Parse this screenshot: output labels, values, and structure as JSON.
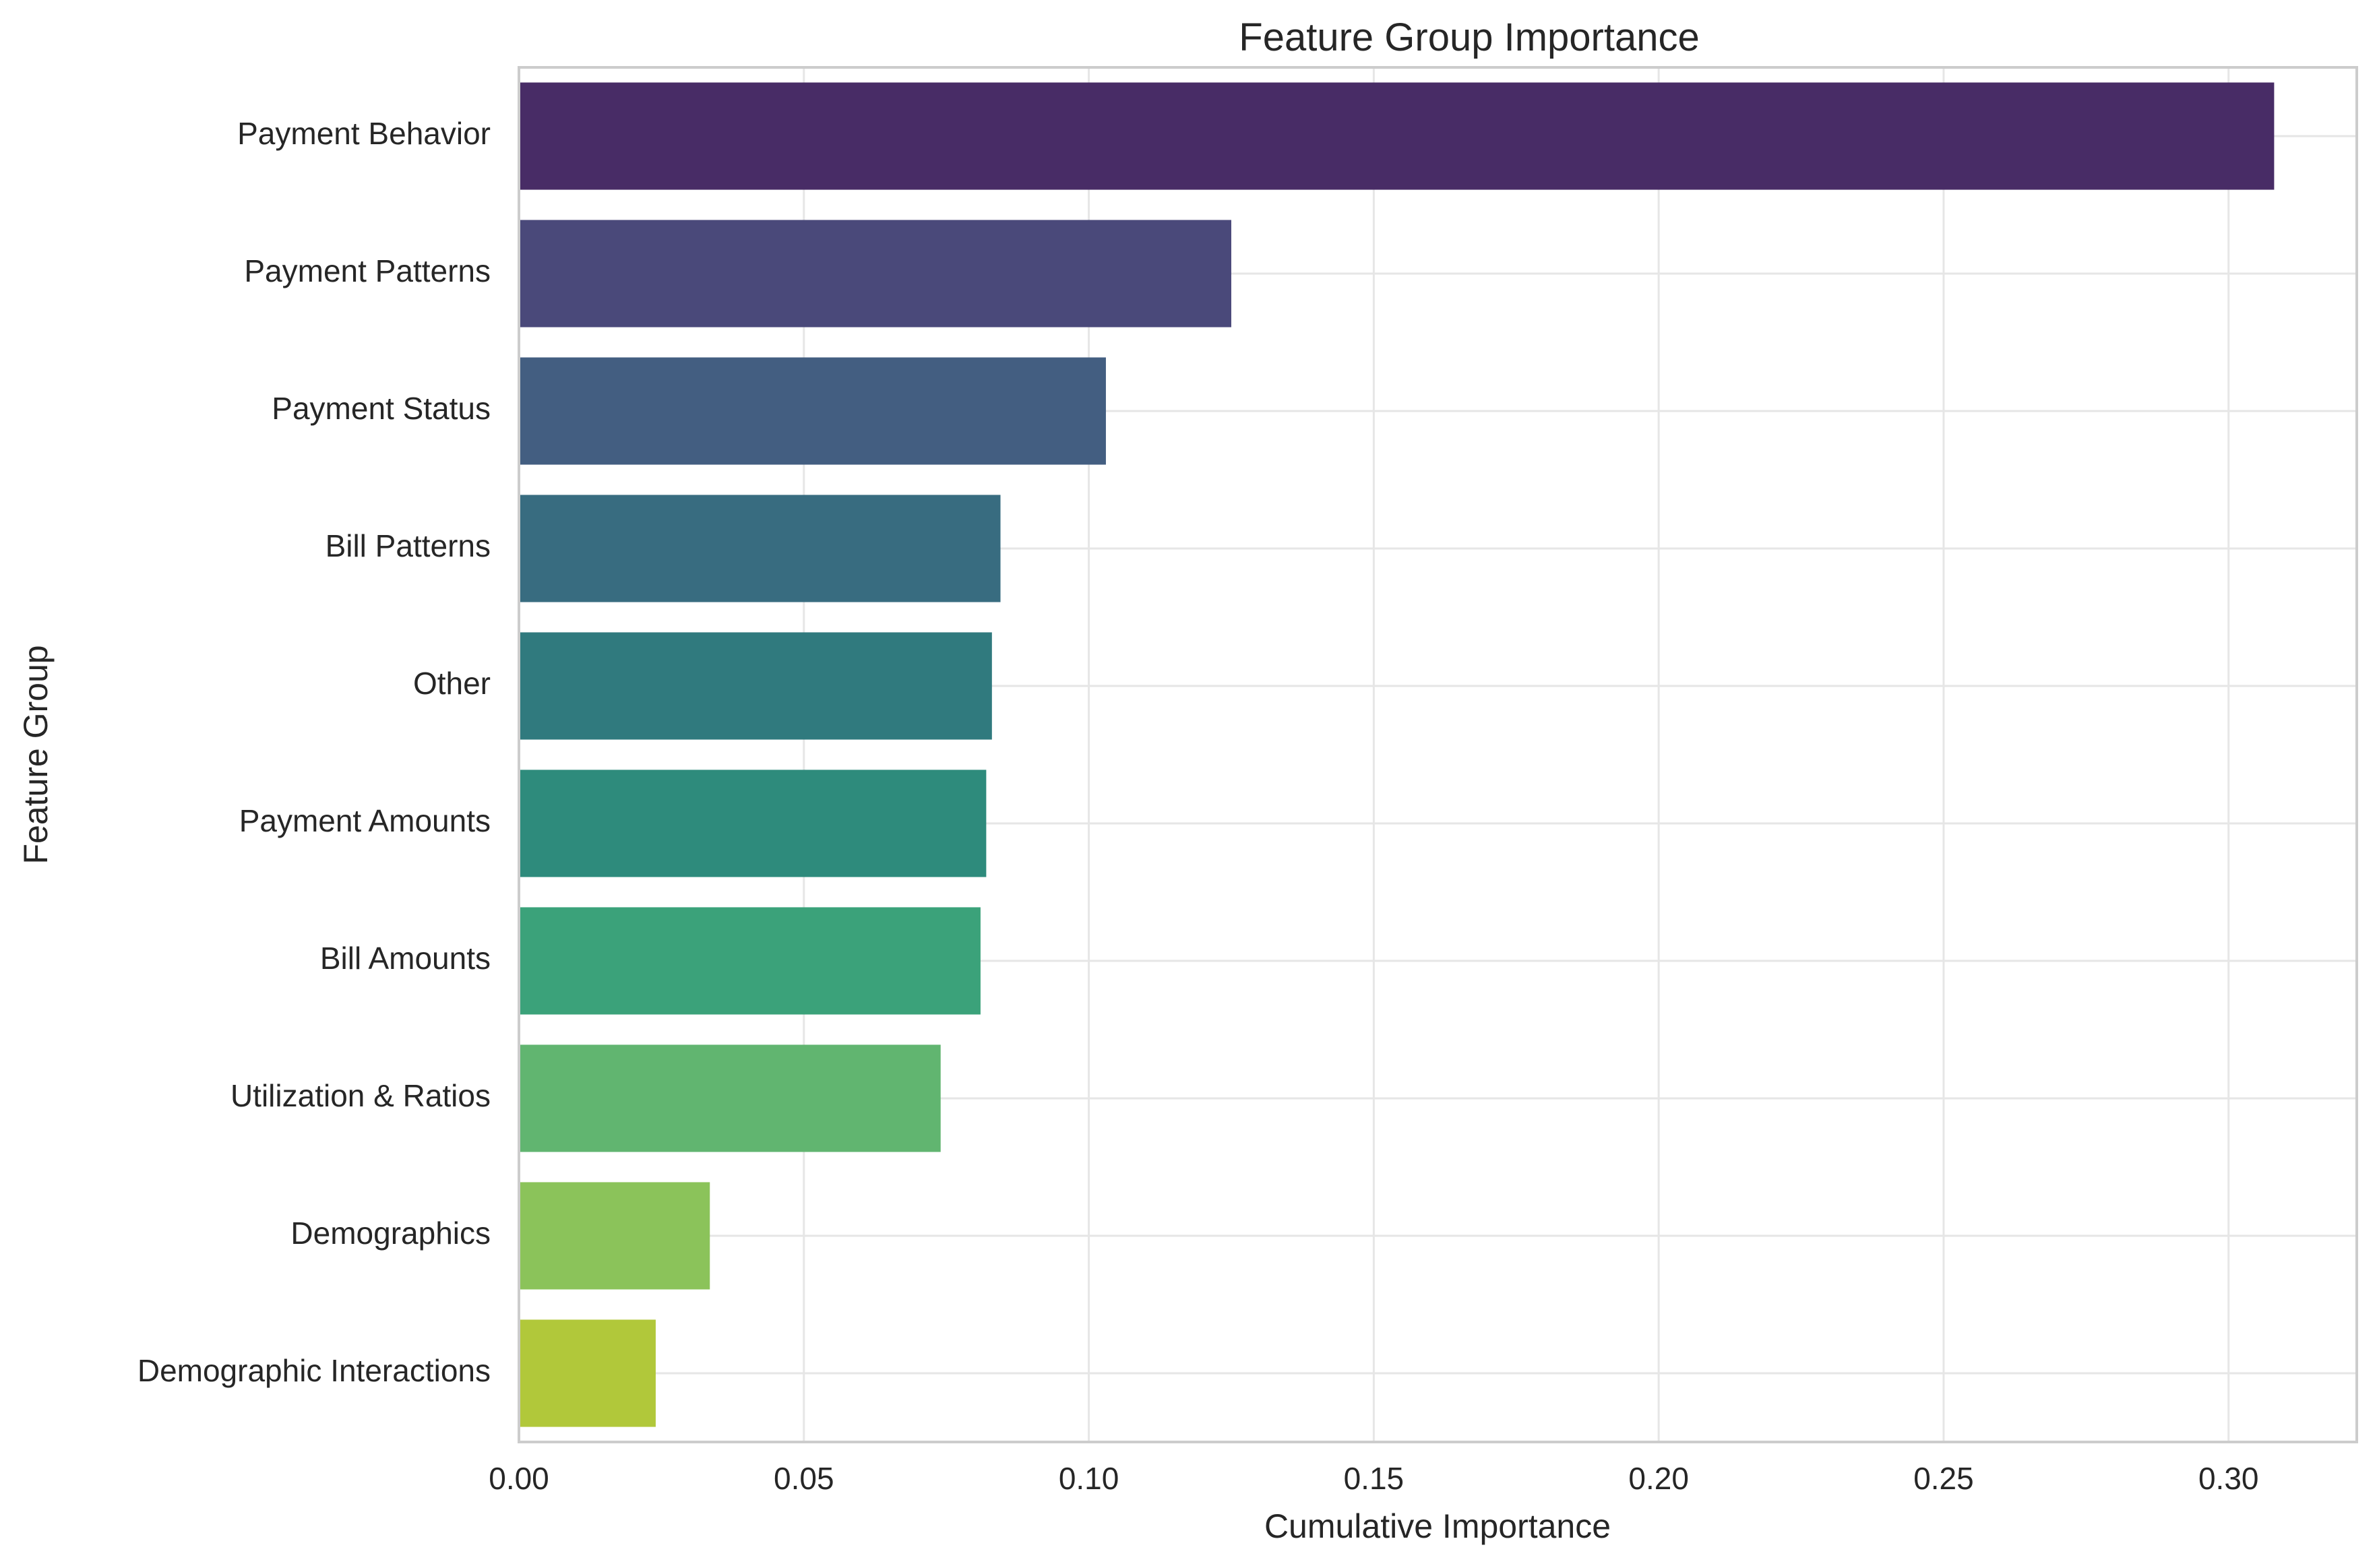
{
  "chart_data": {
    "type": "bar",
    "orientation": "horizontal",
    "title": "Feature Group Importance",
    "xlabel": "Cumulative Importance",
    "ylabel": "Feature Group",
    "xlim": [
      0,
      0.3225
    ],
    "xticks": [
      0.0,
      0.05,
      0.1,
      0.15,
      0.2,
      0.25,
      0.3
    ],
    "xtick_labels": [
      "0.00",
      "0.05",
      "0.10",
      "0.15",
      "0.20",
      "0.25",
      "0.30"
    ],
    "grid": true,
    "categories": [
      "Payment Behavior",
      "Payment Patterns",
      "Payment Status",
      "Bill Patterns",
      "Other",
      "Payment Amounts",
      "Bill Amounts",
      "Utilization & Ratios",
      "Demographics",
      "Demographic Interactions"
    ],
    "values": [
      0.308,
      0.125,
      0.103,
      0.0845,
      0.083,
      0.082,
      0.081,
      0.074,
      0.0335,
      0.024
    ],
    "colors": [
      "#482c66",
      "#4a497a",
      "#435e81",
      "#386c80",
      "#307a7e",
      "#2e8b7c",
      "#3ba27a",
      "#61b570",
      "#8bc35a",
      "#b1c83a"
    ]
  }
}
